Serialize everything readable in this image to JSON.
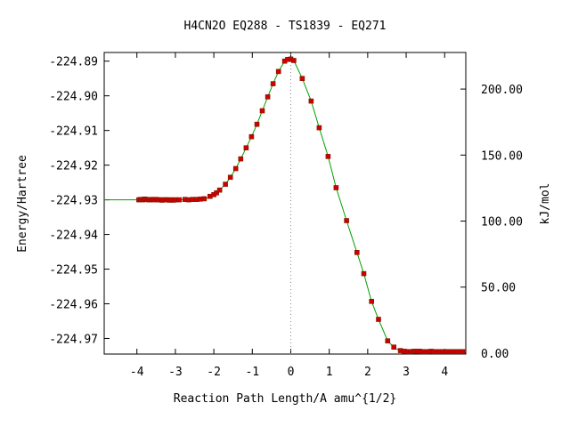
{
  "title": "H4CN2O   EQ288 - TS1839 - EQ271",
  "colors": {
    "line": "#00a000",
    "marker": "#d00000",
    "axis": "#000000",
    "ts_line": "#888888"
  },
  "chart_data": {
    "type": "line",
    "title": "H4CN2O   EQ288 - TS1839 - EQ271",
    "xlabel": "Reaction Path Length/A amu^{1/2}",
    "ylabel": "Energy/Hartree",
    "y2label": "kJ/mol",
    "xlim": [
      -4.85,
      4.55
    ],
    "ylim": [
      -224.9745,
      -224.8875
    ],
    "y2lim": [
      -0.7,
      227.7
    ],
    "x_ticks": [
      -4,
      -3,
      -2,
      -1,
      0,
      1,
      2,
      3,
      4
    ],
    "x_tick_labels": [
      "-4",
      "-3",
      "-2",
      "-1",
      "0",
      "1",
      "2",
      "3",
      "4"
    ],
    "y_ticks": [
      -224.89,
      -224.9,
      -224.91,
      -224.92,
      -224.93,
      -224.94,
      -224.95,
      -224.96,
      -224.97
    ],
    "y_tick_labels": [
      "-224.89",
      "-224.90",
      "-224.91",
      "-224.92",
      "-224.93",
      "-224.94",
      "-224.95",
      "-224.96",
      "-224.97"
    ],
    "y2_ticks": [
      0,
      50,
      100,
      150,
      200
    ],
    "y2_tick_labels": [
      "0.00",
      "50.00",
      "100.00",
      "150.00",
      "200.00"
    ],
    "ts_x": 0,
    "grid": false,
    "series": [
      {
        "points": [
          [
            -4.85,
            -224.93
          ],
          [
            -3.95,
            -224.93
          ],
          [
            -3.8,
            -224.9298
          ],
          [
            -3.65,
            -224.93
          ],
          [
            -3.5,
            -224.9299
          ],
          [
            -3.35,
            -224.9301
          ],
          [
            -3.2,
            -224.93
          ],
          [
            -3.05,
            -224.9301
          ],
          [
            -2.9,
            -224.93
          ],
          [
            -2.75,
            -224.9299
          ],
          [
            -2.6,
            -224.93
          ],
          [
            -2.45,
            -224.9299
          ],
          [
            -2.3,
            -224.9298
          ],
          [
            -2.2,
            -224.9297
          ],
          [
            -2.1,
            -224.929
          ],
          [
            -1.98,
            -224.9283
          ],
          [
            -1.85,
            -224.9272
          ],
          [
            -1.7,
            -224.9255
          ],
          [
            -1.57,
            -224.9235
          ],
          [
            -1.43,
            -224.921
          ],
          [
            -1.3,
            -224.9182
          ],
          [
            -1.16,
            -224.915
          ],
          [
            -1.02,
            -224.9118
          ],
          [
            -0.88,
            -224.9082
          ],
          [
            -0.74,
            -224.9043
          ],
          [
            -0.6,
            -224.9003
          ],
          [
            -0.46,
            -224.8965
          ],
          [
            -0.32,
            -224.893
          ],
          [
            -0.16,
            -224.89
          ],
          [
            -0.05,
            -224.8893
          ],
          [
            0.08,
            -224.8898
          ],
          [
            0.3,
            -224.895
          ],
          [
            0.53,
            -224.9015
          ],
          [
            0.74,
            -224.9092
          ],
          [
            0.97,
            -224.9175
          ],
          [
            1.18,
            -224.9265
          ],
          [
            1.45,
            -224.936
          ],
          [
            1.72,
            -224.9452
          ],
          [
            1.9,
            -224.9513
          ],
          [
            2.1,
            -224.9593
          ],
          [
            2.28,
            -224.9645
          ],
          [
            2.52,
            -224.9707
          ],
          [
            2.7,
            -224.9728
          ],
          [
            2.85,
            -224.9735
          ],
          [
            3.0,
            -224.9737
          ],
          [
            3.15,
            -224.9738
          ],
          [
            3.35,
            -224.9737
          ],
          [
            3.55,
            -224.9738
          ],
          [
            3.75,
            -224.9737
          ],
          [
            3.95,
            -224.9738
          ],
          [
            4.15,
            -224.9738
          ],
          [
            4.35,
            -224.9738
          ],
          [
            4.52,
            -224.9738
          ]
        ],
        "markers": [
          [
            -3.95,
            -224.93
          ],
          [
            -3.9,
            -224.9299
          ],
          [
            -3.85,
            -224.93
          ],
          [
            -3.8,
            -224.9298
          ],
          [
            -3.75,
            -224.9299
          ],
          [
            -3.7,
            -224.93
          ],
          [
            -3.65,
            -224.93
          ],
          [
            -3.6,
            -224.9299
          ],
          [
            -3.55,
            -224.93
          ],
          [
            -3.5,
            -224.9299
          ],
          [
            -3.45,
            -224.93
          ],
          [
            -3.4,
            -224.93
          ],
          [
            -3.35,
            -224.9301
          ],
          [
            -3.3,
            -224.93
          ],
          [
            -3.25,
            -224.93
          ],
          [
            -3.2,
            -224.93
          ],
          [
            -3.15,
            -224.9301
          ],
          [
            -3.1,
            -224.93
          ],
          [
            -3.05,
            -224.9301
          ],
          [
            -3.0,
            -224.93
          ],
          [
            -2.9,
            -224.93
          ],
          [
            -2.75,
            -224.9299
          ],
          [
            -2.65,
            -224.93
          ],
          [
            -2.55,
            -224.9299
          ],
          [
            -2.45,
            -224.9299
          ],
          [
            -2.35,
            -224.9298
          ],
          [
            -2.25,
            -224.9297
          ],
          [
            -2.1,
            -224.929
          ],
          [
            -2.0,
            -224.9285
          ],
          [
            -1.93,
            -224.928
          ],
          [
            -1.85,
            -224.9272
          ],
          [
            -1.7,
            -224.9255
          ],
          [
            -1.57,
            -224.9235
          ],
          [
            -1.43,
            -224.921
          ],
          [
            -1.3,
            -224.9182
          ],
          [
            -1.16,
            -224.915
          ],
          [
            -1.02,
            -224.9118
          ],
          [
            -0.88,
            -224.9082
          ],
          [
            -0.74,
            -224.9043
          ],
          [
            -0.6,
            -224.9003
          ],
          [
            -0.46,
            -224.8965
          ],
          [
            -0.32,
            -224.893
          ],
          [
            -0.16,
            -224.89
          ],
          [
            -0.08,
            -224.8895
          ],
          [
            0.0,
            -224.8894
          ],
          [
            0.08,
            -224.8898
          ],
          [
            0.3,
            -224.895
          ],
          [
            0.53,
            -224.9015
          ],
          [
            0.74,
            -224.9092
          ],
          [
            0.97,
            -224.9175
          ],
          [
            1.18,
            -224.9265
          ],
          [
            1.45,
            -224.936
          ],
          [
            1.72,
            -224.9452
          ],
          [
            1.9,
            -224.9513
          ],
          [
            2.1,
            -224.9593
          ],
          [
            2.28,
            -224.9645
          ],
          [
            2.52,
            -224.9707
          ],
          [
            2.68,
            -224.9725
          ],
          [
            2.85,
            -224.9735
          ],
          [
            2.95,
            -224.9737
          ],
          [
            3.05,
            -224.9738
          ],
          [
            3.12,
            -224.9738
          ],
          [
            3.2,
            -224.9737
          ],
          [
            3.28,
            -224.9737
          ],
          [
            3.35,
            -224.9737
          ],
          [
            3.42,
            -224.9738
          ],
          [
            3.5,
            -224.9738
          ],
          [
            3.57,
            -224.9738
          ],
          [
            3.65,
            -224.9737
          ],
          [
            3.72,
            -224.9738
          ],
          [
            3.8,
            -224.9738
          ],
          [
            3.87,
            -224.9738
          ],
          [
            3.95,
            -224.9738
          ],
          [
            4.02,
            -224.9738
          ],
          [
            4.1,
            -224.9738
          ],
          [
            4.17,
            -224.9738
          ],
          [
            4.25,
            -224.9738
          ],
          [
            4.32,
            -224.9738
          ],
          [
            4.4,
            -224.9738
          ],
          [
            4.47,
            -224.9738
          ]
        ]
      }
    ]
  }
}
